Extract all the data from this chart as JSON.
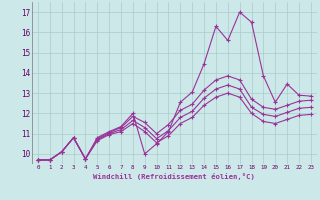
{
  "bg_color": "#cce8e8",
  "grid_color": "#aacccc",
  "line_color": "#993399",
  "xlabel": "Windchill (Refroidissement éolien,°C)",
  "xlim": [
    -0.5,
    23.5
  ],
  "ylim": [
    9.5,
    17.5
  ],
  "ytick_values": [
    10,
    11,
    12,
    13,
    14,
    15,
    16,
    17
  ],
  "xtick_labels": [
    "0",
    "1",
    "2",
    "3",
    "4",
    "5",
    "6",
    "7",
    "8",
    "9",
    "10",
    "11",
    "12",
    "13",
    "14",
    "15",
    "16",
    "17",
    "18",
    "19",
    "20",
    "21",
    "22",
    "23"
  ],
  "series0": [
    9.7,
    9.7,
    10.1,
    10.8,
    9.75,
    10.8,
    11.1,
    11.35,
    12.0,
    10.0,
    10.5,
    11.1,
    12.55,
    13.05,
    14.45,
    16.3,
    15.6,
    17.0,
    16.5,
    13.85,
    12.55,
    13.45,
    12.9,
    12.85
  ],
  "series1": [
    9.7,
    9.7,
    10.1,
    10.8,
    9.75,
    10.75,
    11.05,
    11.3,
    11.85,
    11.55,
    11.0,
    11.45,
    12.15,
    12.45,
    13.15,
    13.65,
    13.85,
    13.65,
    12.7,
    12.3,
    12.2,
    12.4,
    12.6,
    12.65
  ],
  "series2": [
    9.7,
    9.7,
    10.1,
    10.8,
    9.75,
    10.7,
    11.0,
    11.2,
    11.65,
    11.3,
    10.75,
    11.15,
    11.8,
    12.1,
    12.75,
    13.2,
    13.4,
    13.2,
    12.3,
    11.95,
    11.85,
    12.05,
    12.25,
    12.3
  ],
  "series3": [
    9.7,
    9.7,
    10.1,
    10.8,
    9.75,
    10.65,
    10.95,
    11.1,
    11.5,
    11.1,
    10.55,
    10.9,
    11.5,
    11.8,
    12.4,
    12.8,
    13.0,
    12.8,
    12.0,
    11.6,
    11.5,
    11.7,
    11.9,
    11.95
  ]
}
